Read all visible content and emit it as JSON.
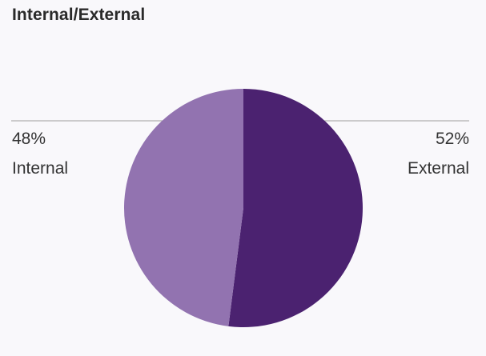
{
  "chart_data": {
    "type": "pie",
    "title": "Internal/External",
    "slices": [
      {
        "label": "External",
        "percent_label": "52%",
        "value": 52,
        "color": "#4b2270"
      },
      {
        "label": "Internal",
        "percent_label": "48%",
        "value": 48,
        "color": "#9273b0"
      }
    ],
    "start_angle_deg": 0,
    "direction": "clockwise",
    "legend": "side-labels"
  },
  "colors": {
    "background": "#f9f8fb",
    "leader_line": "#9e9e9e"
  }
}
